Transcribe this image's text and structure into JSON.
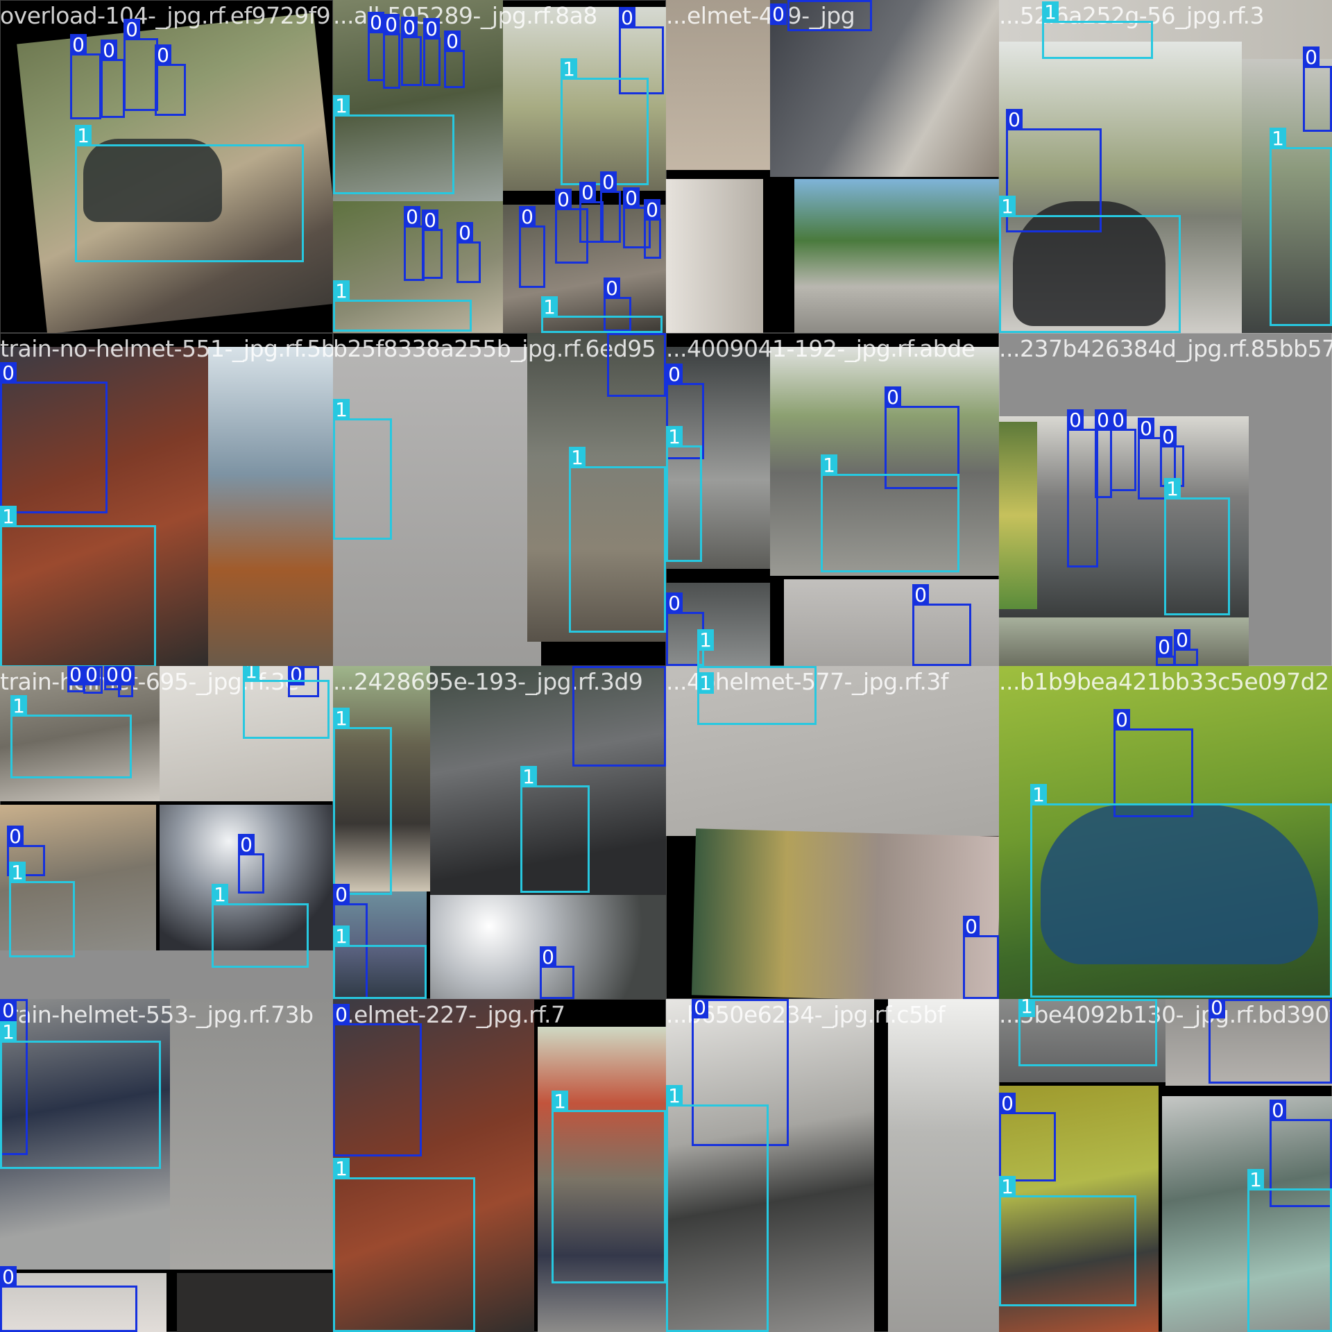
{
  "colors": {
    "class0": "#1531de",
    "class1": "#27c8e0"
  },
  "class_labels": {
    "c0": "0",
    "c1": "1"
  },
  "tiles": [
    {
      "name": "overload-104-_jpg.rf.ef9729f9"
    },
    {
      "name": "...all-595289-_jpg.rf.8a8"
    },
    {
      "name": "...elmet-479-_jpg"
    },
    {
      "name": "...52i6a252g-56_jpg.rf.3"
    },
    {
      "name": "train-no-helmet-551-_jpg.rf.5b"
    },
    {
      "name": "b25f8338a255b_jpg.rf.6ed95"
    },
    {
      "name": "...4009041-192-_jpg.rf.abde"
    },
    {
      "name": "...237b426384d_jpg.rf.85bb57"
    },
    {
      "name": "train-helmet-695-_jpg.rf.3e"
    },
    {
      "name": "...2428695e-193-_jpg.rf.3d9"
    },
    {
      "name": "...4bhelmet-577-_jpg.rf.3f"
    },
    {
      "name": "...b1b9bea421bb33c5e097d2"
    },
    {
      "name": "train-helmet-553-_jpg.rf.73b"
    },
    {
      "name": "...elmet-227-_jpg.rf.7"
    },
    {
      "name": "...b650e6234-_jpg.rf.c5bf"
    },
    {
      "name": "...5be4092b130-_jpg.rf.bd390f"
    }
  ]
}
